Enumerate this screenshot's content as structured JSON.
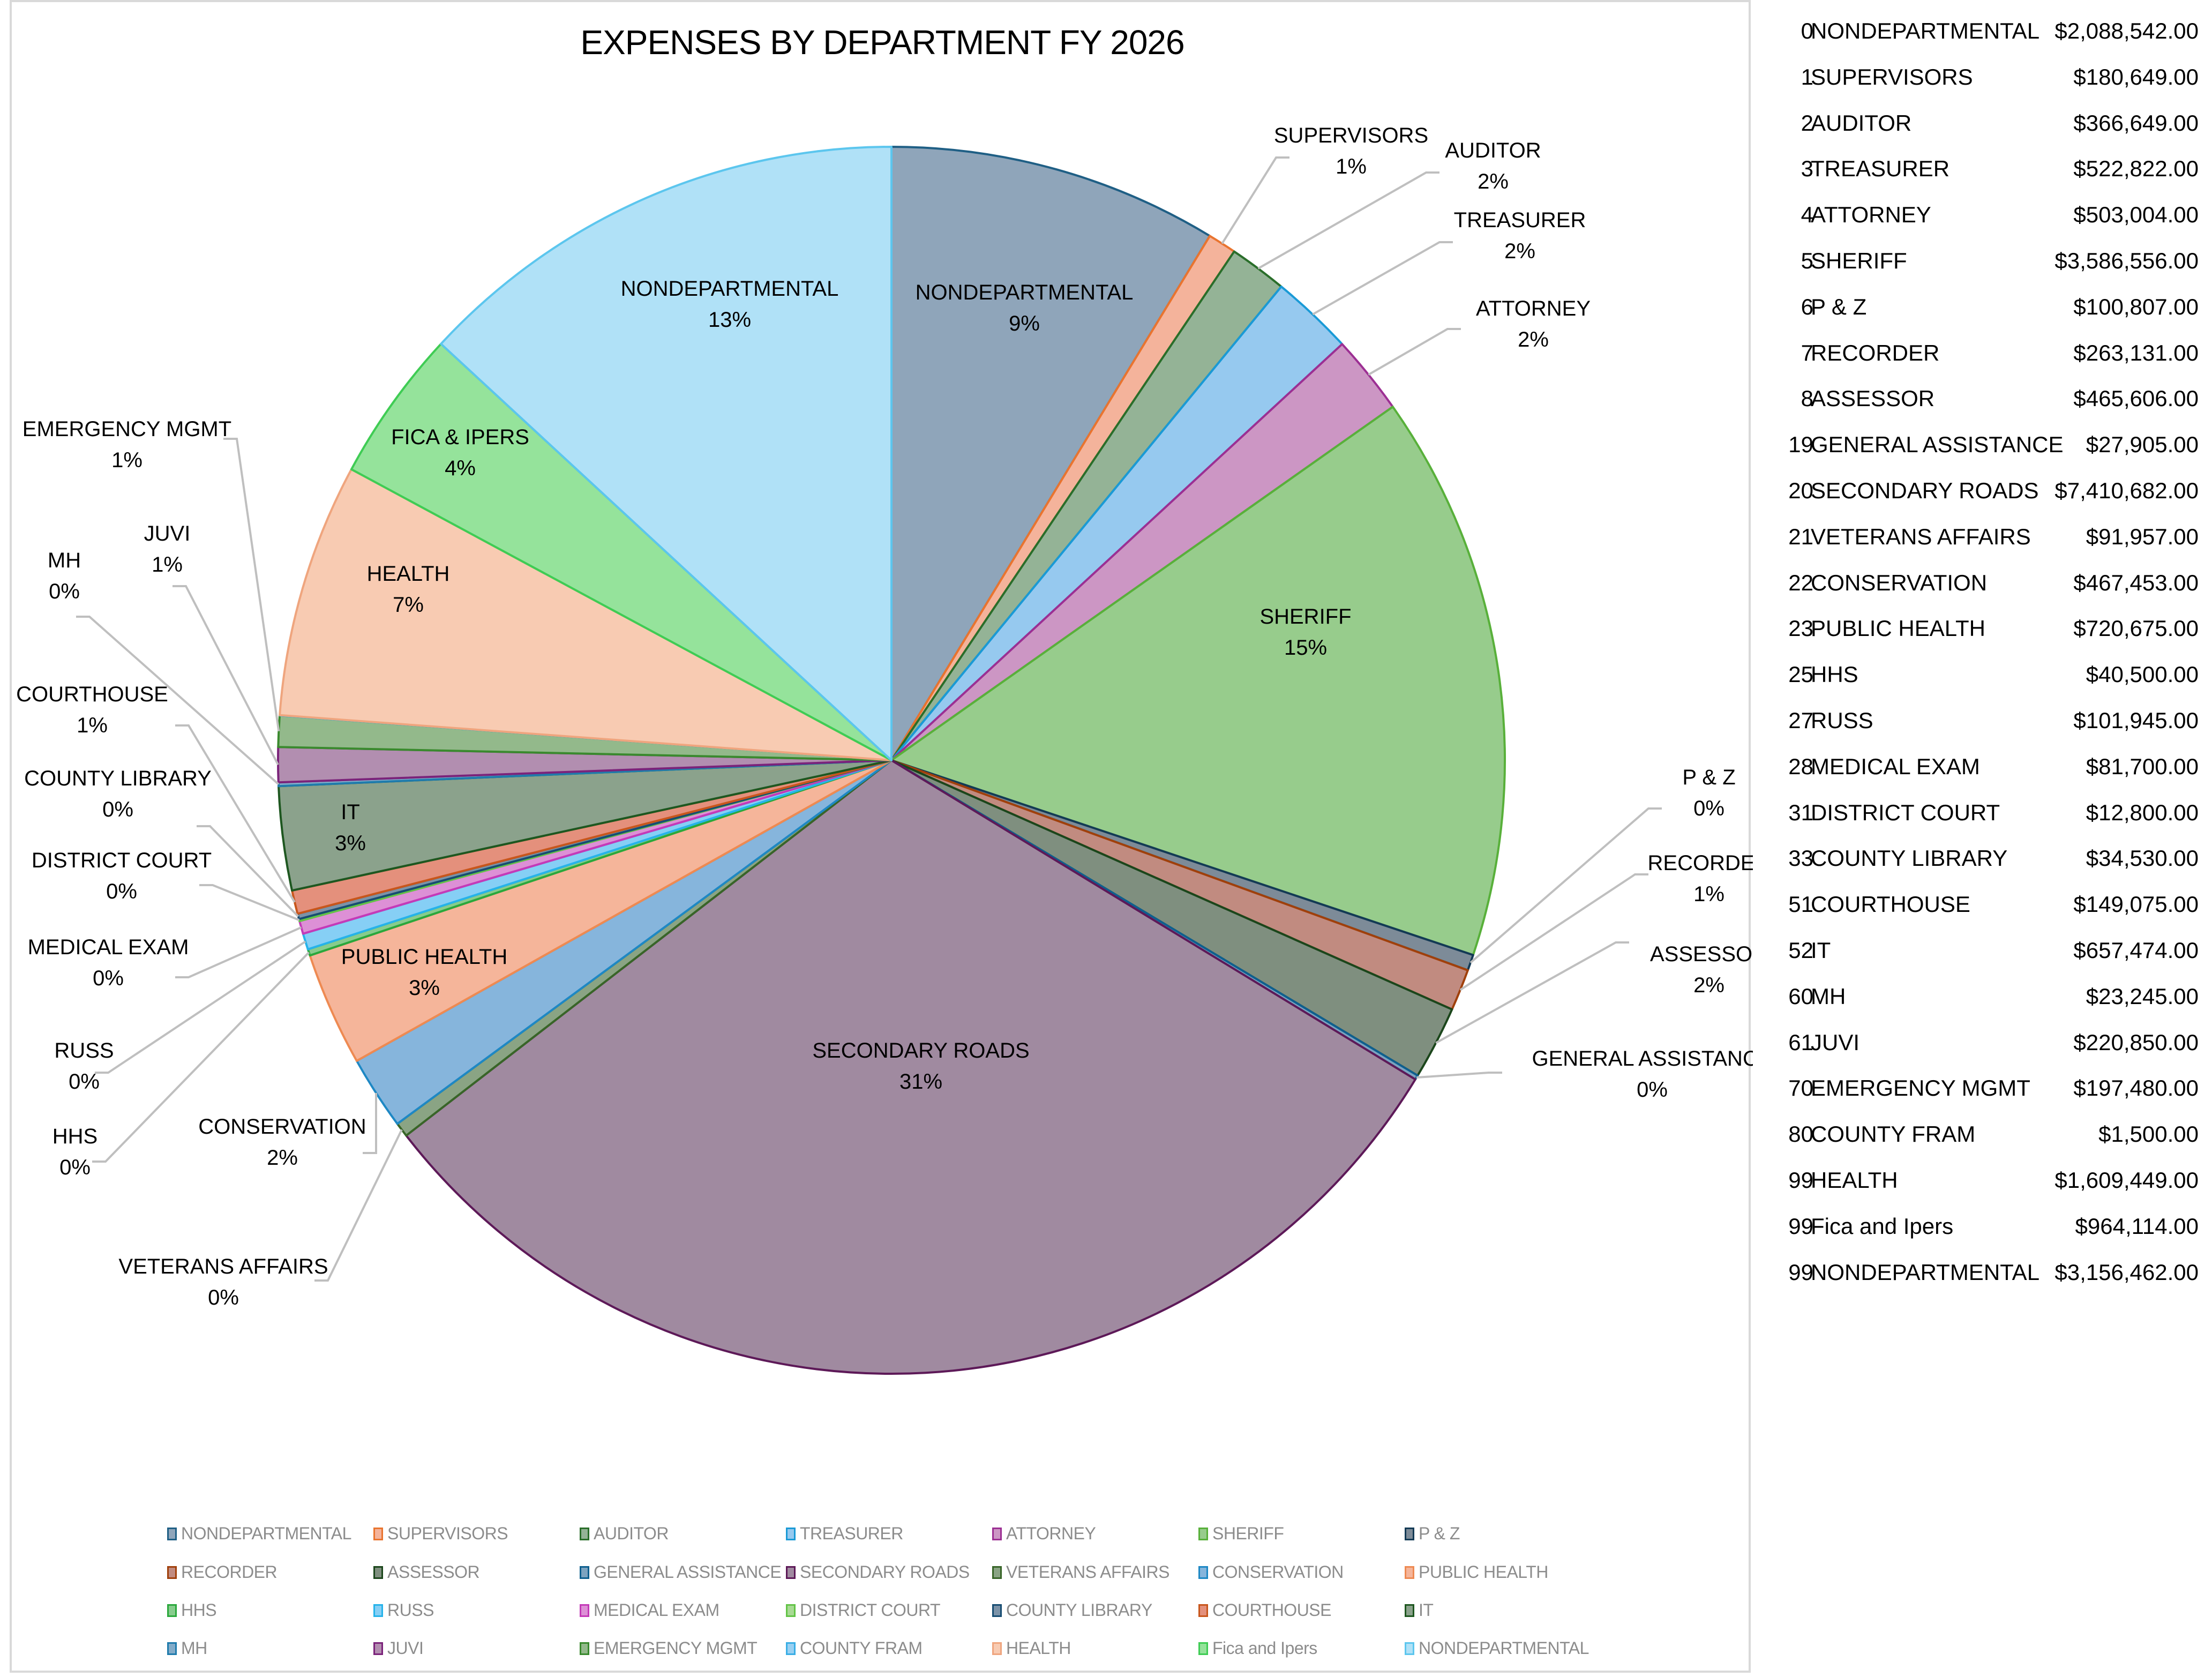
{
  "chart_data": {
    "type": "pie",
    "title": "EXPENSES BY DEPARTMENT FY 2026",
    "start_angle": "12 o'clock, clockwise",
    "legend_position": "bottom",
    "series": [
      {
        "name": "NONDEPARTMENTAL",
        "value": 2088542,
        "pct_label": "9%",
        "fill": "#8fa5ba",
        "stroke": "#1f5f85"
      },
      {
        "name": "SUPERVISORS",
        "value": 180649,
        "pct_label": "1%",
        "fill": "#f4b39b",
        "stroke": "#e9742f"
      },
      {
        "name": "AUDITOR",
        "value": 366649,
        "pct_label": "2%",
        "fill": "#94b396",
        "stroke": "#2a6e2a"
      },
      {
        "name": "TREASURER",
        "value": 522822,
        "pct_label": "2%",
        "fill": "#96c9ef",
        "stroke": "#1a9ad6"
      },
      {
        "name": "ATTORNEY",
        "value": 503004,
        "pct_label": "2%",
        "fill": "#cc96c4",
        "stroke": "#9c2f93"
      },
      {
        "name": "SHERIFF",
        "value": 3586556,
        "pct_label": "15%",
        "fill": "#97cc8c",
        "stroke": "#58b03a"
      },
      {
        "name": "P & Z",
        "value": 100807,
        "pct_label": "0%",
        "fill": "#7d8b98",
        "stroke": "#133a55"
      },
      {
        "name": "RECORDER",
        "value": 263131,
        "pct_label": "1%",
        "fill": "#c18b80",
        "stroke": "#a0400b"
      },
      {
        "name": "ASSESSOR",
        "value": 465606,
        "pct_label": "2%",
        "fill": "#7f8f7f",
        "stroke": "#1b461b"
      },
      {
        "name": "GENERAL ASSISTANCE",
        "value": 27905,
        "pct_label": "0%",
        "fill": "#7ca3c0",
        "stroke": "#0e5f8f"
      },
      {
        "name": "SECONDARY ROADS",
        "value": 7410682,
        "pct_label": "31%",
        "fill": "#a08aa0",
        "stroke": "#5d1958"
      },
      {
        "name": "VETERANS AFFAIRS",
        "value": 91957,
        "pct_label": "0%",
        "fill": "#8aa484",
        "stroke": "#386528"
      },
      {
        "name": "CONSERVATION",
        "value": 467453,
        "pct_label": "2%",
        "fill": "#86b5dc",
        "stroke": "#1e88c4"
      },
      {
        "name": "PUBLIC HEALTH",
        "value": 720675,
        "pct_label": "3%",
        "fill": "#f5b59a",
        "stroke": "#ee8a52"
      },
      {
        "name": "HHS",
        "value": 40500,
        "pct_label": "0%",
        "fill": "#87cc8d",
        "stroke": "#2aa83c"
      },
      {
        "name": "RUSS",
        "value": 101945,
        "pct_label": "0%",
        "fill": "#86cff5",
        "stroke": "#26b3ea"
      },
      {
        "name": "MEDICAL EXAM",
        "value": 81700,
        "pct_label": "0%",
        "fill": "#dd90d6",
        "stroke": "#c43ab8"
      },
      {
        "name": "DISTRICT COURT",
        "value": 12800,
        "pct_label": "0%",
        "fill": "#a8da94",
        "stroke": "#63c447"
      },
      {
        "name": "COUNTY LIBRARY",
        "value": 34530,
        "pct_label": "0%",
        "fill": "#7c93a8",
        "stroke": "#174d72"
      },
      {
        "name": "COURTHOUSE",
        "value": 149075,
        "pct_label": "1%",
        "fill": "#e4907c",
        "stroke": "#c8561c"
      },
      {
        "name": "IT",
        "value": 657474,
        "pct_label": "3%",
        "fill": "#8ba28c",
        "stroke": "#1e5720"
      },
      {
        "name": "MH",
        "value": 23245,
        "pct_label": "0%",
        "fill": "#83acc9",
        "stroke": "#1f7bac"
      },
      {
        "name": "JUVI",
        "value": 220850,
        "pct_label": "1%",
        "fill": "#b28eb0",
        "stroke": "#7b237a"
      },
      {
        "name": "EMERGENCY MGMT",
        "value": 197480,
        "pct_label": "1%",
        "fill": "#93b98b",
        "stroke": "#3a8a2e"
      },
      {
        "name": "COUNTY FRAM",
        "value": 1500,
        "pct_label": "",
        "fill": "#99d0f2",
        "stroke": "#3aaee5"
      },
      {
        "name": "HEALTH",
        "value": 1609449,
        "pct_label": "7%",
        "fill": "#f8cbb2",
        "stroke": "#efa57e"
      },
      {
        "name": "FICA & IPERS",
        "value": 964114,
        "pct_label": "4%",
        "fill": "#95e39b",
        "stroke": "#3fcc54"
      },
      {
        "name": "NONDEPARTMENTAL",
        "value": 3156462,
        "pct_label": "13%",
        "fill": "#b0e1f7",
        "stroke": "#5cc6ee"
      }
    ],
    "legend": [
      "NONDEPARTMENTAL",
      "SUPERVISORS",
      "AUDITOR",
      "TREASURER",
      "ATTORNEY",
      "SHERIFF",
      "P & Z",
      "RECORDER",
      "ASSESSOR",
      "GENERAL ASSISTANCE",
      "SECONDARY ROADS",
      "VETERANS AFFAIRS",
      "CONSERVATION",
      "PUBLIC HEALTH",
      "HHS",
      "RUSS",
      "MEDICAL EXAM",
      "DISTRICT COURT",
      "COUNTY LIBRARY",
      "COURTHOUSE",
      "IT",
      "MH",
      "JUVI",
      "EMERGENCY MGMT",
      "COUNTY FRAM",
      "HEALTH",
      "Fica and Ipers",
      "NONDEPARTMENTAL"
    ]
  },
  "table": {
    "rows": [
      {
        "code": "0",
        "name": "NONDEPARTMENTAL",
        "amount": "$2,088,542.00"
      },
      {
        "code": "1",
        "name": "SUPERVISORS",
        "amount": "$180,649.00"
      },
      {
        "code": "2",
        "name": "AUDITOR",
        "amount": "$366,649.00"
      },
      {
        "code": "3",
        "name": "TREASURER",
        "amount": "$522,822.00"
      },
      {
        "code": "4",
        "name": "ATTORNEY",
        "amount": "$503,004.00"
      },
      {
        "code": "5",
        "name": "SHERIFF",
        "amount": "$3,586,556.00"
      },
      {
        "code": "6",
        "name": "P & Z",
        "amount": "$100,807.00"
      },
      {
        "code": "7",
        "name": "RECORDER",
        "amount": "$263,131.00"
      },
      {
        "code": "8",
        "name": "ASSESSOR",
        "amount": "$465,606.00"
      },
      {
        "code": "19",
        "name": "GENERAL ASSISTANCE",
        "amount": "$27,905.00"
      },
      {
        "code": "20",
        "name": "SECONDARY ROADS",
        "amount": "$7,410,682.00"
      },
      {
        "code": "21",
        "name": "VETERANS AFFAIRS",
        "amount": "$91,957.00"
      },
      {
        "code": "22",
        "name": "CONSERVATION",
        "amount": "$467,453.00"
      },
      {
        "code": "23",
        "name": "PUBLIC HEALTH",
        "amount": "$720,675.00"
      },
      {
        "code": "25",
        "name": "HHS",
        "amount": "$40,500.00"
      },
      {
        "code": "27",
        "name": "RUSS",
        "amount": "$101,945.00"
      },
      {
        "code": "28",
        "name": "MEDICAL EXAM",
        "amount": "$81,700.00"
      },
      {
        "code": "31",
        "name": "DISTRICT COURT",
        "amount": "$12,800.00"
      },
      {
        "code": "33",
        "name": "COUNTY LIBRARY",
        "amount": "$34,530.00"
      },
      {
        "code": "51",
        "name": "COURTHOUSE",
        "amount": "$149,075.00"
      },
      {
        "code": "52",
        "name": "IT",
        "amount": "$657,474.00"
      },
      {
        "code": "60",
        "name": "MH",
        "amount": "$23,245.00"
      },
      {
        "code": "61",
        "name": "JUVI",
        "amount": "$220,850.00"
      },
      {
        "code": "70",
        "name": "EMERGENCY MGMT",
        "amount": "$197,480.00"
      },
      {
        "code": "80",
        "name": "COUNTY FRAM",
        "amount": "$1,500.00"
      },
      {
        "code": "99",
        "name": "HEALTH",
        "amount": "$1,609,449.00"
      },
      {
        "code": "99",
        "name": "Fica and Ipers",
        "amount": "$964,114.00"
      },
      {
        "code": "99",
        "name": "NONDEPARTMENTAL",
        "amount": "$3,156,462.00"
      }
    ]
  }
}
